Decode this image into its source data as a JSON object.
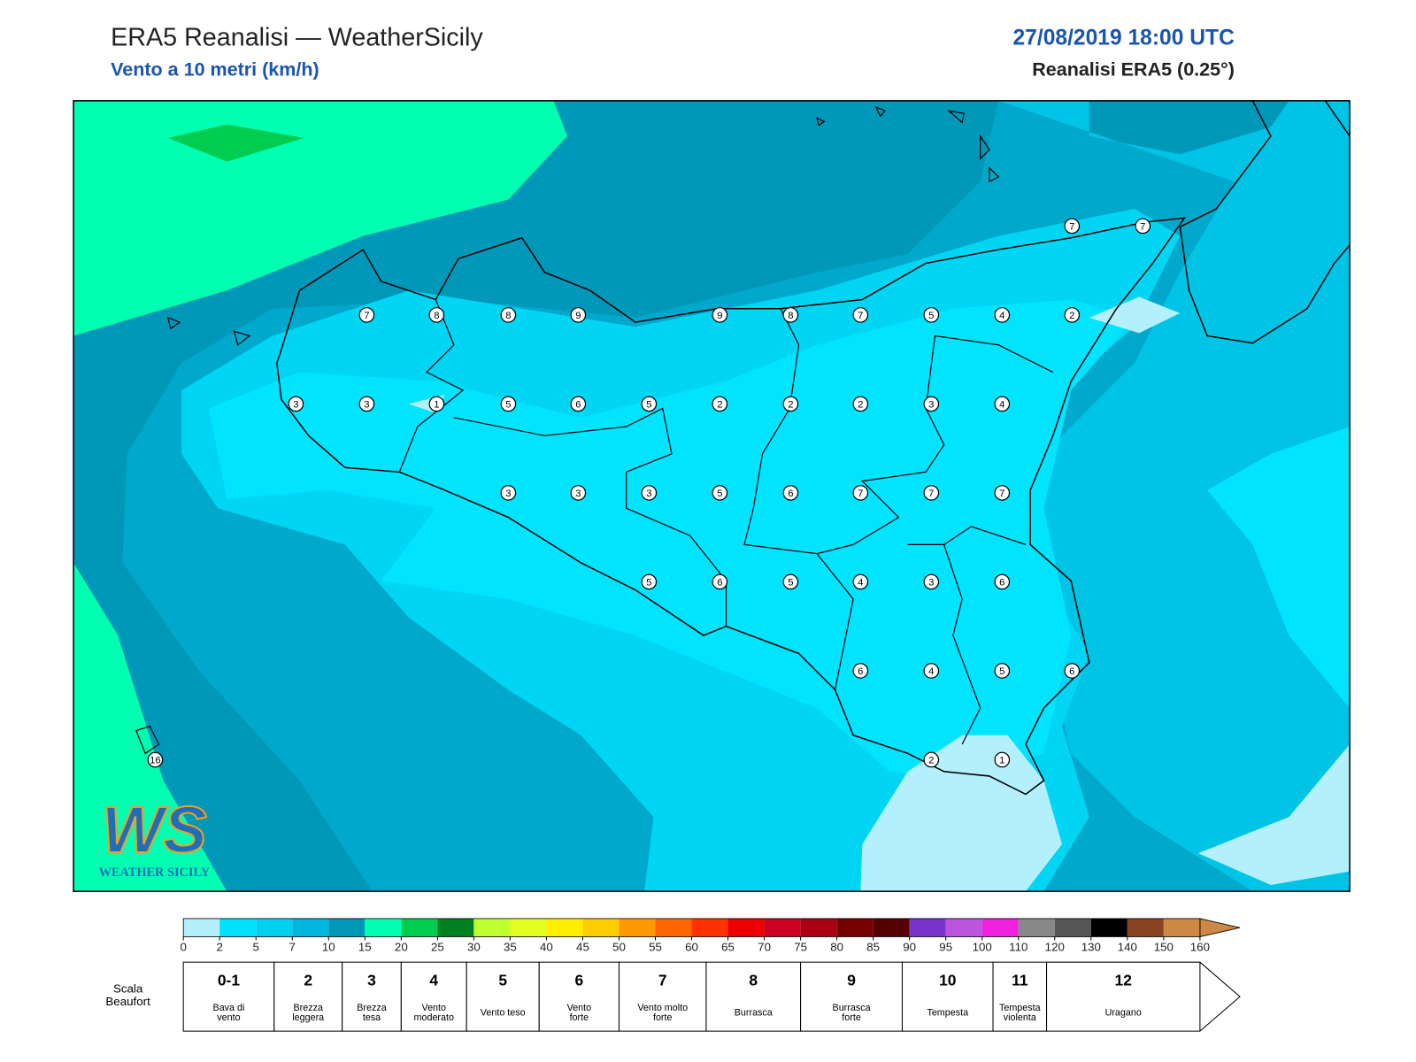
{
  "header": {
    "title": "ERA5 Reanalisi — WeatherSicily",
    "subtitle": "Vento a 10 metri (km/h)",
    "date": "27/08/2019 18:00 UTC",
    "model": "Reanalisi ERA5 (0.25°)"
  },
  "stations": [
    7,
    7,
    7,
    8,
    8,
    9,
    9,
    8,
    7,
    5,
    4,
    2,
    3,
    3,
    1,
    5,
    6,
    5,
    2,
    2,
    2,
    3,
    4,
    3,
    3,
    3,
    5,
    6,
    7,
    7,
    7,
    5,
    6,
    5,
    4,
    3,
    6,
    6,
    4,
    5,
    6,
    2,
    1,
    16
  ],
  "colorbar": {
    "ticks": [
      0,
      2,
      5,
      7,
      10,
      15,
      20,
      25,
      30,
      35,
      40,
      45,
      50,
      55,
      60,
      65,
      70,
      75,
      80,
      85,
      90,
      95,
      100,
      110,
      120,
      130,
      140,
      150,
      160
    ],
    "colors": [
      "#b3f0fb",
      "#00e0ff",
      "#00d0f0",
      "#00b8dd",
      "#0098b8",
      "#00ffb0",
      "#00cc50",
      "#008020",
      "#c0ff30",
      "#e0ff20",
      "#ffee00",
      "#ffcc00",
      "#ff9900",
      "#ff6600",
      "#ff3300",
      "#ee0000",
      "#cc0022",
      "#aa0011",
      "#770000",
      "#550000",
      "#7733cc",
      "#bb55dd",
      "#ee22dd",
      "#888888",
      "#555555",
      "#000000",
      "#884422",
      "#cc8844"
    ]
  },
  "beaufort": {
    "title": [
      "Scala",
      "Beaufort"
    ],
    "levels": [
      {
        "number": "0-1",
        "label": [
          "Bava di",
          "vento"
        ]
      },
      {
        "number": "2",
        "label": [
          "Brezza",
          "leggera"
        ]
      },
      {
        "number": "3",
        "label": [
          "Brezza",
          "tesa"
        ]
      },
      {
        "number": "4",
        "label": [
          "Vento",
          "moderato"
        ]
      },
      {
        "number": "5",
        "label": [
          "Vento teso"
        ]
      },
      {
        "number": "6",
        "label": [
          "Vento",
          "forte"
        ]
      },
      {
        "number": "7",
        "label": [
          "Vento molto",
          "forte"
        ]
      },
      {
        "number": "8",
        "label": [
          "Burrasca"
        ]
      },
      {
        "number": "9",
        "label": [
          "Burrasca",
          "forte"
        ]
      },
      {
        "number": "10",
        "label": [
          "Tempesta"
        ]
      },
      {
        "number": "11",
        "label": [
          "Tempesta",
          "violenta"
        ]
      },
      {
        "number": "12",
        "label": [
          "Uragano"
        ]
      }
    ]
  },
  "logo": {
    "mark": "WS",
    "text": "WEATHER SICILY"
  }
}
